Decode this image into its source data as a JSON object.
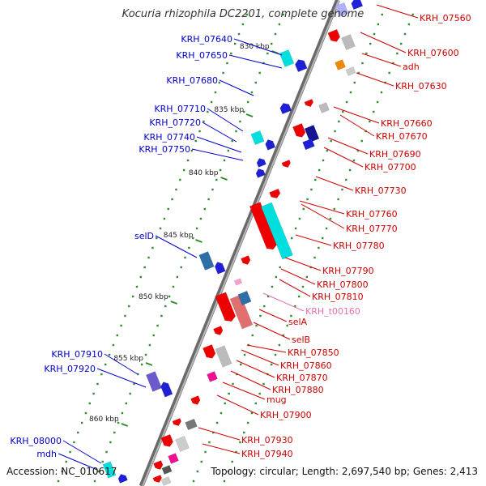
{
  "title": "Kocuria rhizophila DC2201, complete genome",
  "footer": {
    "accession": "Accession: NC_010617",
    "topology": "Topology: circular; Length: 2,697,540 bp; Genes: 2,413"
  },
  "colors": {
    "left_label": "#0000cc",
    "right_label": "#cc0000",
    "trna_label": "#e070b0",
    "kbp_dot": "#2e8b2e",
    "backbone": "#8a8a8a"
  },
  "kbp_labels": [
    "830 kbp",
    "835 kbp",
    "840 kbp",
    "845 kbp",
    "850 kbp",
    "855 kbp",
    "860 kbp"
  ],
  "left_labels": [
    "KRH_07640",
    "KRH_07650",
    "KRH_07680",
    "KRH_07710",
    "KRH_07720",
    "KRH_07740",
    "KRH_07750",
    "selD",
    "KRH_07910",
    "KRH_07920",
    "KRH_08000",
    "mdh"
  ],
  "right_labels": [
    "KRH_07560",
    "KRH_07600",
    "adh",
    "KRH_07630",
    "KRH_07660",
    "KRH_07670",
    "KRH_07690",
    "KRH_07700",
    "KRH_07730",
    "KRH_07760",
    "KRH_07770",
    "KRH_07780",
    "KRH_07790",
    "KRH_07800",
    "KRH_07810",
    "KRH_t00160",
    "selA",
    "selB",
    "KRH_07850",
    "KRH_07860",
    "KRH_07870",
    "KRH_07880",
    "mug",
    "KRH_07900",
    "KRH_07930",
    "KRH_07940"
  ]
}
